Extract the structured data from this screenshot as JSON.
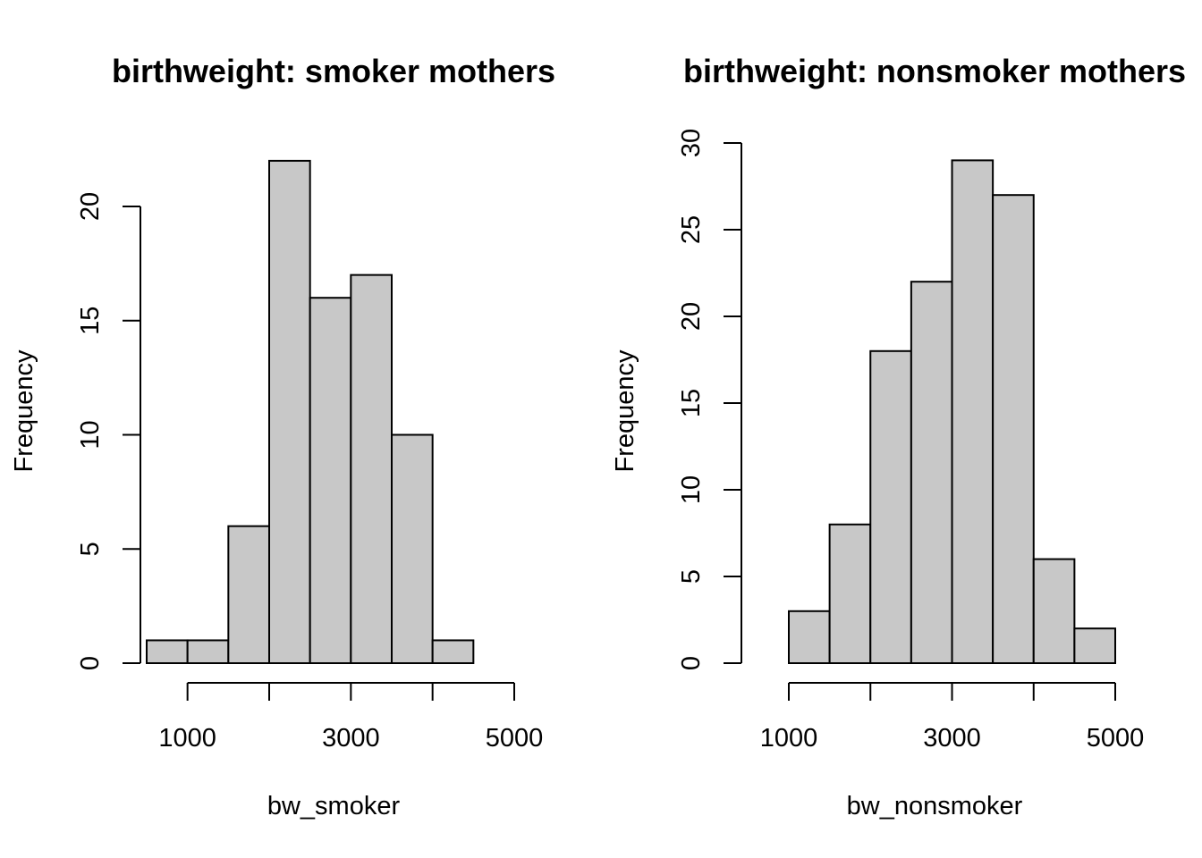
{
  "chart_data": [
    {
      "type": "bar",
      "title": "birthweight: smoker mothers",
      "xlabel": "bw_smoker",
      "ylabel": "Frequency",
      "bin_edges": [
        500,
        1000,
        1500,
        2000,
        2500,
        3000,
        3500,
        4000,
        4500
      ],
      "values": [
        1,
        1,
        6,
        22,
        16,
        17,
        10,
        1
      ],
      "xlim": [
        500,
        5000
      ],
      "ylim": [
        0,
        22
      ],
      "xticks": [
        1000,
        2000,
        3000,
        4000,
        5000
      ],
      "xtick_labels": [
        "1000",
        "",
        "3000",
        "",
        "5000"
      ],
      "yticks": [
        0,
        5,
        10,
        15,
        20
      ],
      "ytick_labels": [
        "0",
        "5",
        "10",
        "15",
        "20"
      ]
    },
    {
      "type": "bar",
      "title": "birthweight: nonsmoker mothers",
      "xlabel": "bw_nonsmoker",
      "ylabel": "Frequency",
      "bin_edges": [
        1000,
        1500,
        2000,
        2500,
        3000,
        3500,
        4000,
        4500,
        5000
      ],
      "values": [
        3,
        8,
        18,
        22,
        29,
        27,
        6,
        2
      ],
      "xlim": [
        1000,
        5000
      ],
      "ylim": [
        0,
        30
      ],
      "xticks": [
        1000,
        2000,
        3000,
        4000,
        5000
      ],
      "xtick_labels": [
        "1000",
        "",
        "3000",
        "",
        "5000"
      ],
      "yticks": [
        0,
        5,
        10,
        15,
        20,
        25,
        30
      ],
      "ytick_labels": [
        "0",
        "5",
        "10",
        "15",
        "20",
        "25",
        "30"
      ]
    }
  ]
}
